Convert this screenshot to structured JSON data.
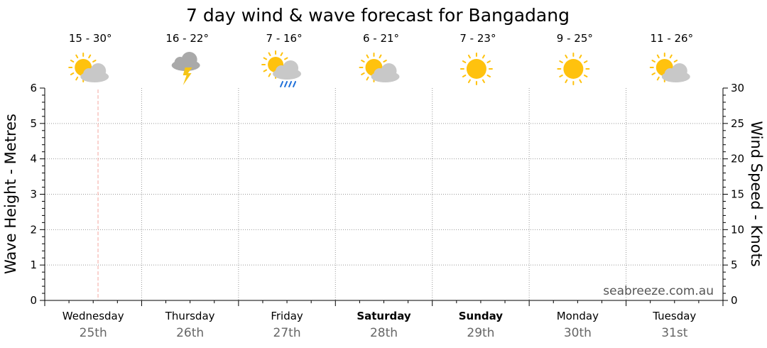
{
  "chart_data": {
    "type": "line",
    "title": "7 day wind & wave forecast for Bangadang",
    "y_left": {
      "label": "Wave Height - Metres",
      "range": [
        0,
        6
      ],
      "ticks": [
        "0",
        "1",
        "2",
        "3",
        "4",
        "5",
        "6"
      ]
    },
    "y_right": {
      "label": "Wind Speed - Knots",
      "range": [
        0,
        30
      ],
      "ticks": [
        "0",
        "5",
        "10",
        "15",
        "20",
        "25",
        "30"
      ]
    },
    "grid": true,
    "days": [
      {
        "name": "Wednesday",
        "date": "25th",
        "temp": "15 - 30°",
        "icon": "partly-cloudy-icon",
        "bold": false
      },
      {
        "name": "Thursday",
        "date": "26th",
        "temp": "16 - 22°",
        "icon": "storm-cloud-icon",
        "bold": false
      },
      {
        "name": "Friday",
        "date": "27th",
        "temp": "7 - 16°",
        "icon": "sun-showers-icon",
        "bold": false
      },
      {
        "name": "Saturday",
        "date": "28th",
        "temp": "6 - 21°",
        "icon": "partly-cloudy-icon",
        "bold": true
      },
      {
        "name": "Sunday",
        "date": "29th",
        "temp": "7 - 23°",
        "icon": "sunny-icon",
        "bold": true
      },
      {
        "name": "Monday",
        "date": "30th",
        "temp": "9 - 25°",
        "icon": "sunny-icon",
        "bold": false
      },
      {
        "name": "Tuesday",
        "date": "31st",
        "temp": "11 - 26°",
        "icon": "partly-cloudy-icon",
        "bold": false
      }
    ],
    "series": [],
    "current_time_marker": "Wednesday midday"
  },
  "watermark": "seabreeze.com.au",
  "colors": {
    "sun": "#FFC20E",
    "cloud": "#C8C8C8",
    "storm_cloud": "#A9A9A9",
    "rain": "#1E6FD9",
    "lightning": "#F5C518",
    "grid": "#999999",
    "now_marker": "#F4A6A0"
  }
}
